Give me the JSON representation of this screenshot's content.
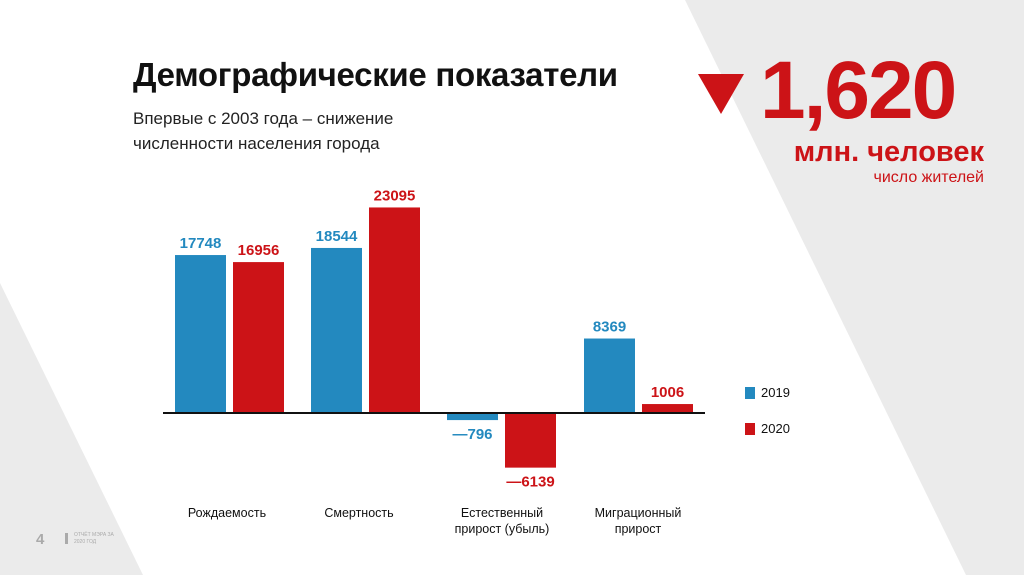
{
  "header": {
    "title": "Демографические показатели",
    "subtitle": "Впервые с 2003 года – снижение численности населения города"
  },
  "kpi": {
    "value": "1,620",
    "unit": "млн. человек",
    "caption": "число жителей",
    "trend_icon": "triangle-down-icon",
    "color": "#cc1317"
  },
  "footer": {
    "page_number": "4",
    "report_label": "ОТЧЁТ МЭРА ЗА 2020 ГОД"
  },
  "chart_data": {
    "type": "bar",
    "categories": [
      "Рождаемость",
      "Смертность",
      "Естественный прирост (убыль)",
      "Миграционный прирост"
    ],
    "series": [
      {
        "name": "2019",
        "color": "#2389bf",
        "values": [
          17748,
          18544,
          -796,
          8369
        ],
        "labels": [
          "17748",
          "18544",
          "—796",
          "8369"
        ]
      },
      {
        "name": "2020",
        "color": "#cc1317",
        "values": [
          16956,
          23095,
          -6139,
          1006
        ],
        "labels": [
          "16956",
          "23095",
          "—6139",
          "1006"
        ]
      }
    ],
    "title": "",
    "xlabel": "",
    "ylabel": "",
    "legend": "right",
    "grid": false,
    "axis_ticks": false
  }
}
